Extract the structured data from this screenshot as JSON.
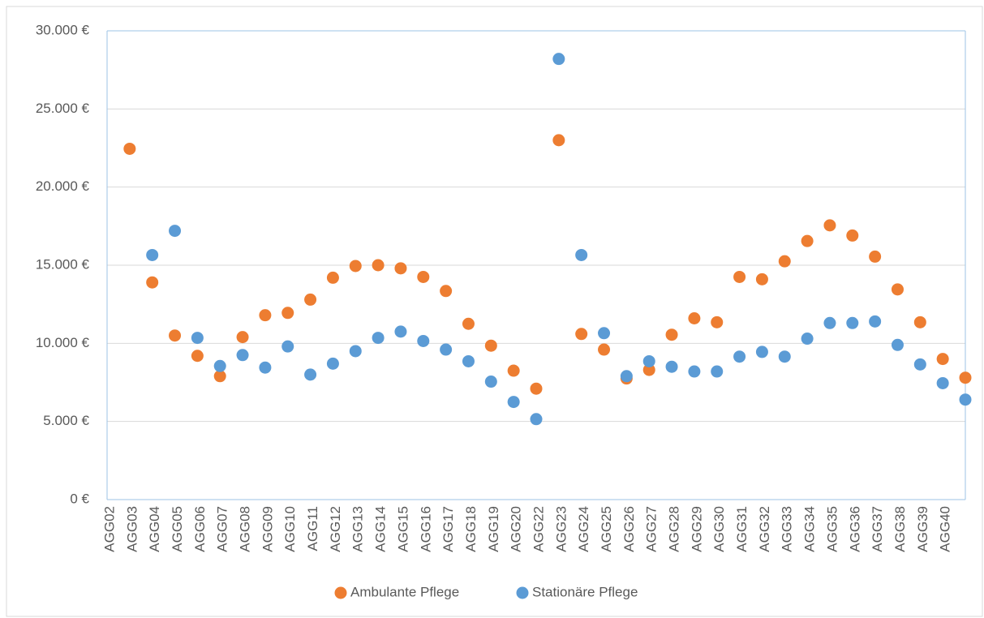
{
  "chart_data": {
    "type": "scatter",
    "categories": [
      "AGG02",
      "AGG03",
      "AGG04",
      "AGG05",
      "AGG06",
      "AGG07",
      "AGG08",
      "AGG09",
      "AGG10",
      "AGG11",
      "AGG12",
      "AGG13",
      "AGG14",
      "AGG15",
      "AGG16",
      "AGG17",
      "AGG18",
      "AGG19",
      "AGG20",
      "AGG22",
      "AGG23",
      "AGG24",
      "AGG25",
      "AGG26",
      "AGG27",
      "AGG28",
      "AGG29",
      "AGG30",
      "AGG31",
      "AGG32",
      "AGG33",
      "AGG34",
      "AGG35",
      "AGG36",
      "AGG37",
      "AGG38",
      "AGG39",
      "AGG40",
      null
    ],
    "series": [
      {
        "name": "Ambulante Pflege",
        "color": "#ed7d31",
        "values": [
          null,
          22450,
          13900,
          10500,
          9200,
          7900,
          10400,
          11800,
          11950,
          12800,
          14200,
          14950,
          15000,
          14800,
          14250,
          13350,
          11250,
          9850,
          8250,
          7100,
          23000,
          10600,
          9600,
          7750,
          8300,
          10550,
          11600,
          11350,
          14250,
          14100,
          15250,
          16550,
          17550,
          16900,
          15550,
          13450,
          11350,
          9000,
          7800
        ]
      },
      {
        "name": "Stationäre Pflege",
        "color": "#5b9bd5",
        "values": [
          null,
          null,
          15650,
          17200,
          10350,
          8550,
          9250,
          8450,
          9800,
          8000,
          8700,
          9500,
          10350,
          10750,
          10150,
          9600,
          8850,
          7550,
          6250,
          5150,
          28200,
          15650,
          10650,
          7900,
          8850,
          8500,
          8200,
          8200,
          9150,
          9450,
          9150,
          10300,
          11300,
          11300,
          11400,
          9900,
          8650,
          7450,
          6400
        ]
      }
    ],
    "ylim": [
      0,
      30000
    ],
    "yticks": [
      {
        "value": 0,
        "label": "0 €"
      },
      {
        "value": 5000,
        "label": "5.000 €"
      },
      {
        "value": 10000,
        "label": "10.000 €"
      },
      {
        "value": 15000,
        "label": "15.000 €"
      },
      {
        "value": 20000,
        "label": "20.000 €"
      },
      {
        "value": 25000,
        "label": "25.000 €"
      },
      {
        "value": 30000,
        "label": "30.000 €"
      }
    ],
    "grid": true,
    "legend": "bottom"
  }
}
